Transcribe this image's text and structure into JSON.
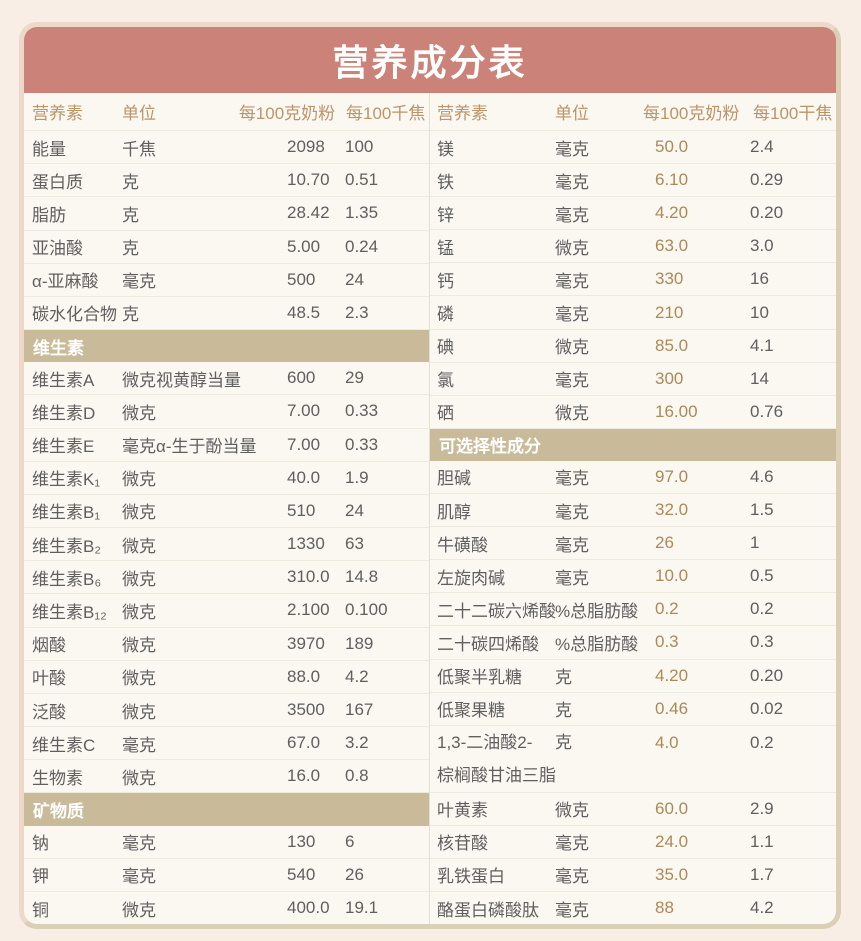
{
  "title": "营养成分表",
  "colors": {
    "title_bar": "#cb8379",
    "section_bg": "#c9bb9a",
    "header_text": "#bb9468",
    "value_gold": "#ab8a57",
    "body_text": "#5f5f5f",
    "card_bg": "#fbf8f1",
    "page_bg": "#f9eee6"
  },
  "left_table": {
    "header": {
      "nutrient": "营养素",
      "unit": "单位",
      "per100g": "每100克奶粉",
      "per100kj": "每100千焦"
    },
    "rows": [
      {
        "type": "data",
        "name": "能量",
        "unit": "千焦",
        "per100g": "2098",
        "per100kj": "100"
      },
      {
        "type": "data",
        "name": "蛋白质",
        "unit": "克",
        "per100g": "10.70",
        "per100kj": "0.51"
      },
      {
        "type": "data",
        "name": "脂肪",
        "unit": "克",
        "per100g": "28.42",
        "per100kj": "1.35"
      },
      {
        "type": "data",
        "name": "亚油酸",
        "unit": "克",
        "per100g": "5.00",
        "per100kj": "0.24"
      },
      {
        "type": "data",
        "name": "α-亚麻酸",
        "unit": "毫克",
        "per100g": "500",
        "per100kj": "24"
      },
      {
        "type": "data",
        "name": "碳水化合物",
        "unit": "克",
        "per100g": "48.5",
        "per100kj": "2.3"
      },
      {
        "type": "section",
        "label": "维生素"
      },
      {
        "type": "data",
        "name": "维生素A",
        "unit": "微克视黄醇当量",
        "per100g": "600",
        "per100kj": "29"
      },
      {
        "type": "data",
        "name": "维生素D",
        "unit": "微克",
        "per100g": "7.00",
        "per100kj": "0.33"
      },
      {
        "type": "data",
        "name": "维生素E",
        "unit": "毫克α-生于酚当量",
        "per100g": "7.00",
        "per100kj": "0.33"
      },
      {
        "type": "data",
        "name": "维生素K₁",
        "unit": "微克",
        "per100g": "40.0",
        "per100kj": "1.9"
      },
      {
        "type": "data",
        "name": "维生素B₁",
        "unit": "微克",
        "per100g": "510",
        "per100kj": "24"
      },
      {
        "type": "data",
        "name": "维生素B₂",
        "unit": "微克",
        "per100g": "1330",
        "per100kj": "63"
      },
      {
        "type": "data",
        "name": "维生素B₆",
        "unit": "微克",
        "per100g": "310.0",
        "per100kj": "14.8"
      },
      {
        "type": "data",
        "name": "维生素B₁₂",
        "unit": "微克",
        "per100g": "2.100",
        "per100kj": "0.100"
      },
      {
        "type": "data",
        "name": "烟酸",
        "unit": "微克",
        "per100g": "3970",
        "per100kj": "189"
      },
      {
        "type": "data",
        "name": "叶酸",
        "unit": "微克",
        "per100g": "88.0",
        "per100kj": "4.2"
      },
      {
        "type": "data",
        "name": "泛酸",
        "unit": "微克",
        "per100g": "3500",
        "per100kj": "167"
      },
      {
        "type": "data",
        "name": "维生素C",
        "unit": "毫克",
        "per100g": "67.0",
        "per100kj": "3.2"
      },
      {
        "type": "data",
        "name": "生物素",
        "unit": "微克",
        "per100g": "16.0",
        "per100kj": "0.8"
      },
      {
        "type": "section",
        "label": "矿物质"
      },
      {
        "type": "data",
        "name": "钠",
        "unit": "毫克",
        "per100g": "130",
        "per100kj": "6"
      },
      {
        "type": "data",
        "name": "钾",
        "unit": "毫克",
        "per100g": "540",
        "per100kj": "26"
      },
      {
        "type": "data",
        "name": "铜",
        "unit": "微克",
        "per100g": "400.0",
        "per100kj": "19.1"
      }
    ]
  },
  "right_table": {
    "header": {
      "nutrient": "营养素",
      "unit": "单位",
      "per100g": "每100克奶粉",
      "per100kj": "每100干焦"
    },
    "rows": [
      {
        "type": "data",
        "name": "镁",
        "unit": "毫克",
        "per100g": "50.0",
        "per100kj": "2.4"
      },
      {
        "type": "data",
        "name": "铁",
        "unit": "毫克",
        "per100g": "6.10",
        "per100kj": "0.29"
      },
      {
        "type": "data",
        "name": "锌",
        "unit": "毫克",
        "per100g": "4.20",
        "per100kj": "0.20"
      },
      {
        "type": "data",
        "name": "锰",
        "unit": "微克",
        "per100g": "63.0",
        "per100kj": "3.0"
      },
      {
        "type": "data",
        "name": "钙",
        "unit": "毫克",
        "per100g": "330",
        "per100kj": "16"
      },
      {
        "type": "data",
        "name": "磷",
        "unit": "毫克",
        "per100g": "210",
        "per100kj": "10"
      },
      {
        "type": "data",
        "name": "碘",
        "unit": "微克",
        "per100g": "85.0",
        "per100kj": "4.1"
      },
      {
        "type": "data",
        "name": "氯",
        "unit": "毫克",
        "per100g": "300",
        "per100kj": "14"
      },
      {
        "type": "data",
        "name": "硒",
        "unit": "微克",
        "per100g": "16.00",
        "per100kj": "0.76"
      },
      {
        "type": "section",
        "label": "可选择性成分"
      },
      {
        "type": "data",
        "name": "胆碱",
        "unit": "毫克",
        "per100g": "97.0",
        "per100kj": "4.6"
      },
      {
        "type": "data",
        "name": "肌醇",
        "unit": "毫克",
        "per100g": "32.0",
        "per100kj": "1.5"
      },
      {
        "type": "data",
        "name": "牛磺酸",
        "unit": "毫克",
        "per100g": "26",
        "per100kj": "1"
      },
      {
        "type": "data",
        "name": "左旋肉碱",
        "unit": "毫克",
        "per100g": "10.0",
        "per100kj": "0.5"
      },
      {
        "type": "data",
        "name": "二十二碳六烯酸",
        "unit": "%总脂肪酸",
        "per100g": "0.2",
        "per100kj": "0.2"
      },
      {
        "type": "data",
        "name": "二十碳四烯酸",
        "unit": "%总脂肪酸",
        "per100g": "0.3",
        "per100kj": "0.3"
      },
      {
        "type": "data",
        "name": "低聚半乳糖",
        "unit": "克",
        "per100g": "4.20",
        "per100kj": "0.20"
      },
      {
        "type": "data",
        "name": "低聚果糖",
        "unit": "克",
        "per100g": "0.46",
        "per100kj": "0.02"
      },
      {
        "type": "data",
        "name": "1,3-二油酸2-",
        "name2": "棕榈酸甘油三脂",
        "unit": "克",
        "per100g": "4.0",
        "per100kj": "0.2"
      },
      {
        "type": "data",
        "name": "叶黄素",
        "unit": "微克",
        "per100g": "60.0",
        "per100kj": "2.9"
      },
      {
        "type": "data",
        "name": "核苷酸",
        "unit": "毫克",
        "per100g": "24.0",
        "per100kj": "1.1"
      },
      {
        "type": "data",
        "name": "乳铁蛋白",
        "unit": "毫克",
        "per100g": "35.0",
        "per100kj": "1.7"
      },
      {
        "type": "data",
        "name": "酪蛋白磷酸肽",
        "unit": "毫克",
        "per100g": "88",
        "per100kj": "4.2"
      }
    ]
  }
}
